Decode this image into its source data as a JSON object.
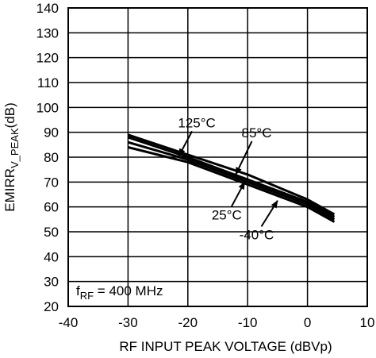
{
  "chart_data": {
    "type": "line",
    "title": "",
    "xlabel": "RF INPUT PEAK VOLTAGE (dBVp)",
    "ylabel": {
      "main": "EMIRR",
      "subscript": "V_PEAK",
      "unit": "(dB)"
    },
    "xlim": [
      -40,
      10
    ],
    "ylim": [
      20,
      140
    ],
    "x_ticks": [
      -40,
      -30,
      -20,
      -10,
      0,
      10
    ],
    "y_ticks": [
      20,
      30,
      40,
      50,
      60,
      70,
      80,
      90,
      100,
      110,
      120,
      130,
      140
    ],
    "x_tick_labels": [
      "-40",
      "-30",
      "-20",
      "-10",
      "0",
      "10"
    ],
    "y_tick_labels": [
      "20",
      "30",
      "40",
      "50",
      "60",
      "70",
      "80",
      "90",
      "100",
      "110",
      "120",
      "130",
      "140"
    ],
    "grid": true,
    "series": [
      {
        "name": "125°C",
        "x": [
          -30,
          -20,
          -10,
          0,
          4.5
        ],
        "y": [
          89,
          81,
          73,
          63,
          57
        ]
      },
      {
        "name": "85°C",
        "x": [
          -30,
          -20,
          -10,
          0,
          4.5
        ],
        "y": [
          88,
          80,
          71,
          62,
          56
        ]
      },
      {
        "name": "25°C",
        "x": [
          -30,
          -20,
          -10,
          0,
          4.5
        ],
        "y": [
          86,
          79,
          70,
          61,
          55
        ]
      },
      {
        "name": "-40°C",
        "x": [
          -30,
          -20,
          -10,
          0,
          4.5
        ],
        "y": [
          84,
          78,
          69,
          60,
          54
        ]
      }
    ],
    "annotations": [
      {
        "text": "125°C",
        "target_series": "125°C",
        "label_pos": [
          -18.5,
          92
        ],
        "arrow_to": [
          -21.5,
          80.5
        ]
      },
      {
        "text": "85°C",
        "target_series": "85°C",
        "label_pos": [
          -8.5,
          88
        ],
        "arrow_to": [
          -12,
          73
        ]
      },
      {
        "text": "25°C",
        "target_series": "25°C",
        "label_pos": [
          -13.5,
          55
        ],
        "arrow_to": [
          -10.5,
          70
        ]
      },
      {
        "text": "-40°C",
        "target_series": "-40°C",
        "label_pos": [
          -8.5,
          47
        ],
        "arrow_to": [
          -5,
          62.5
        ]
      }
    ],
    "condition_label": {
      "prefix": "f",
      "subscript": "RF",
      "text": " = 400 MHz"
    },
    "colors": {
      "line": "#000000",
      "grid": "#000000",
      "background": "#ffffff"
    }
  }
}
